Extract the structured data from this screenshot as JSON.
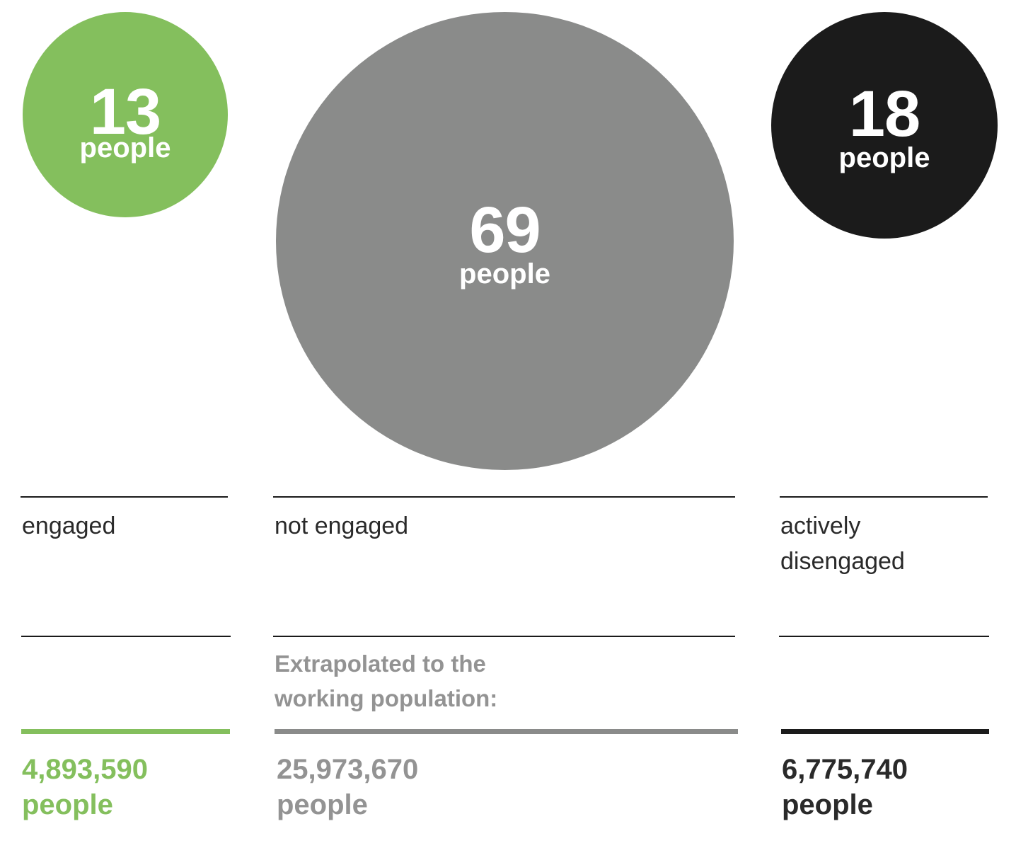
{
  "chart_data": {
    "type": "bubble",
    "categories": [
      "engaged",
      "not engaged",
      "actively\ndisengaged"
    ],
    "values": [
      13,
      69,
      18
    ],
    "value_unit": "people",
    "extrapolation_note": "Extrapolated to the\nworking population:",
    "extrapolated_totals": [
      "4,893,590",
      "25,973,670",
      "6,775,740"
    ],
    "extrapolated_unit": "people",
    "colors": [
      "#84bf5d",
      "#8a8b8a",
      "#1b1b1b"
    ],
    "title": "",
    "xlabel": "",
    "ylabel": ""
  }
}
